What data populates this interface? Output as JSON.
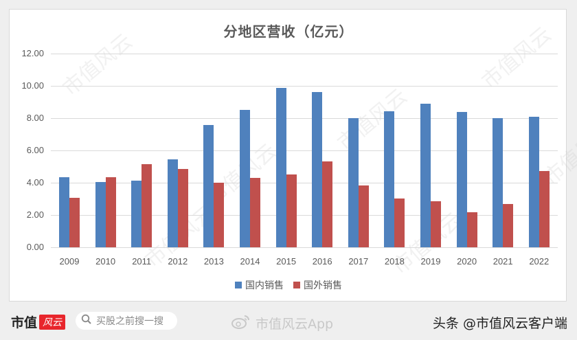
{
  "chart": {
    "title": "分地区营收（亿元）",
    "y_ticks": [
      "12.00",
      "10.00",
      "8.00",
      "6.00",
      "4.00",
      "2.00",
      "0.00"
    ],
    "x_ticks": [
      "2009",
      "2010",
      "2011",
      "2012",
      "2013",
      "2014",
      "2015",
      "2016",
      "2017",
      "2018",
      "2019",
      "2020",
      "2021",
      "2022"
    ],
    "legend": [
      {
        "label": "国内销售",
        "color": "#4f81bd"
      },
      {
        "label": "国外销售",
        "color": "#c0504d"
      }
    ]
  },
  "footer": {
    "logo_text": "市值",
    "logo_badge": "风云",
    "search_placeholder": "买股之前搜一搜",
    "weibo_text": "市值风云App",
    "credit": "头条 @市值风云客户端"
  },
  "watermark": "市值风云",
  "chart_data": {
    "type": "bar",
    "title": "分地区营收（亿元）",
    "xlabel": "",
    "ylabel": "",
    "ylim": [
      0,
      12
    ],
    "grid": true,
    "legend_position": "bottom",
    "categories": [
      "2009",
      "2010",
      "2011",
      "2012",
      "2013",
      "2014",
      "2015",
      "2016",
      "2017",
      "2018",
      "2019",
      "2020",
      "2021",
      "2022"
    ],
    "series": [
      {
        "name": "国内销售",
        "color": "#4f81bd",
        "values": [
          4.33,
          4.05,
          4.12,
          5.45,
          7.57,
          8.51,
          9.87,
          9.62,
          7.99,
          8.42,
          8.89,
          8.38,
          7.99,
          8.08
        ]
      },
      {
        "name": "国外销售",
        "color": "#c0504d",
        "values": [
          3.05,
          4.33,
          5.15,
          4.86,
          4.02,
          4.28,
          4.49,
          5.3,
          3.85,
          3.04,
          2.83,
          2.19,
          2.66,
          4.71
        ]
      }
    ]
  }
}
